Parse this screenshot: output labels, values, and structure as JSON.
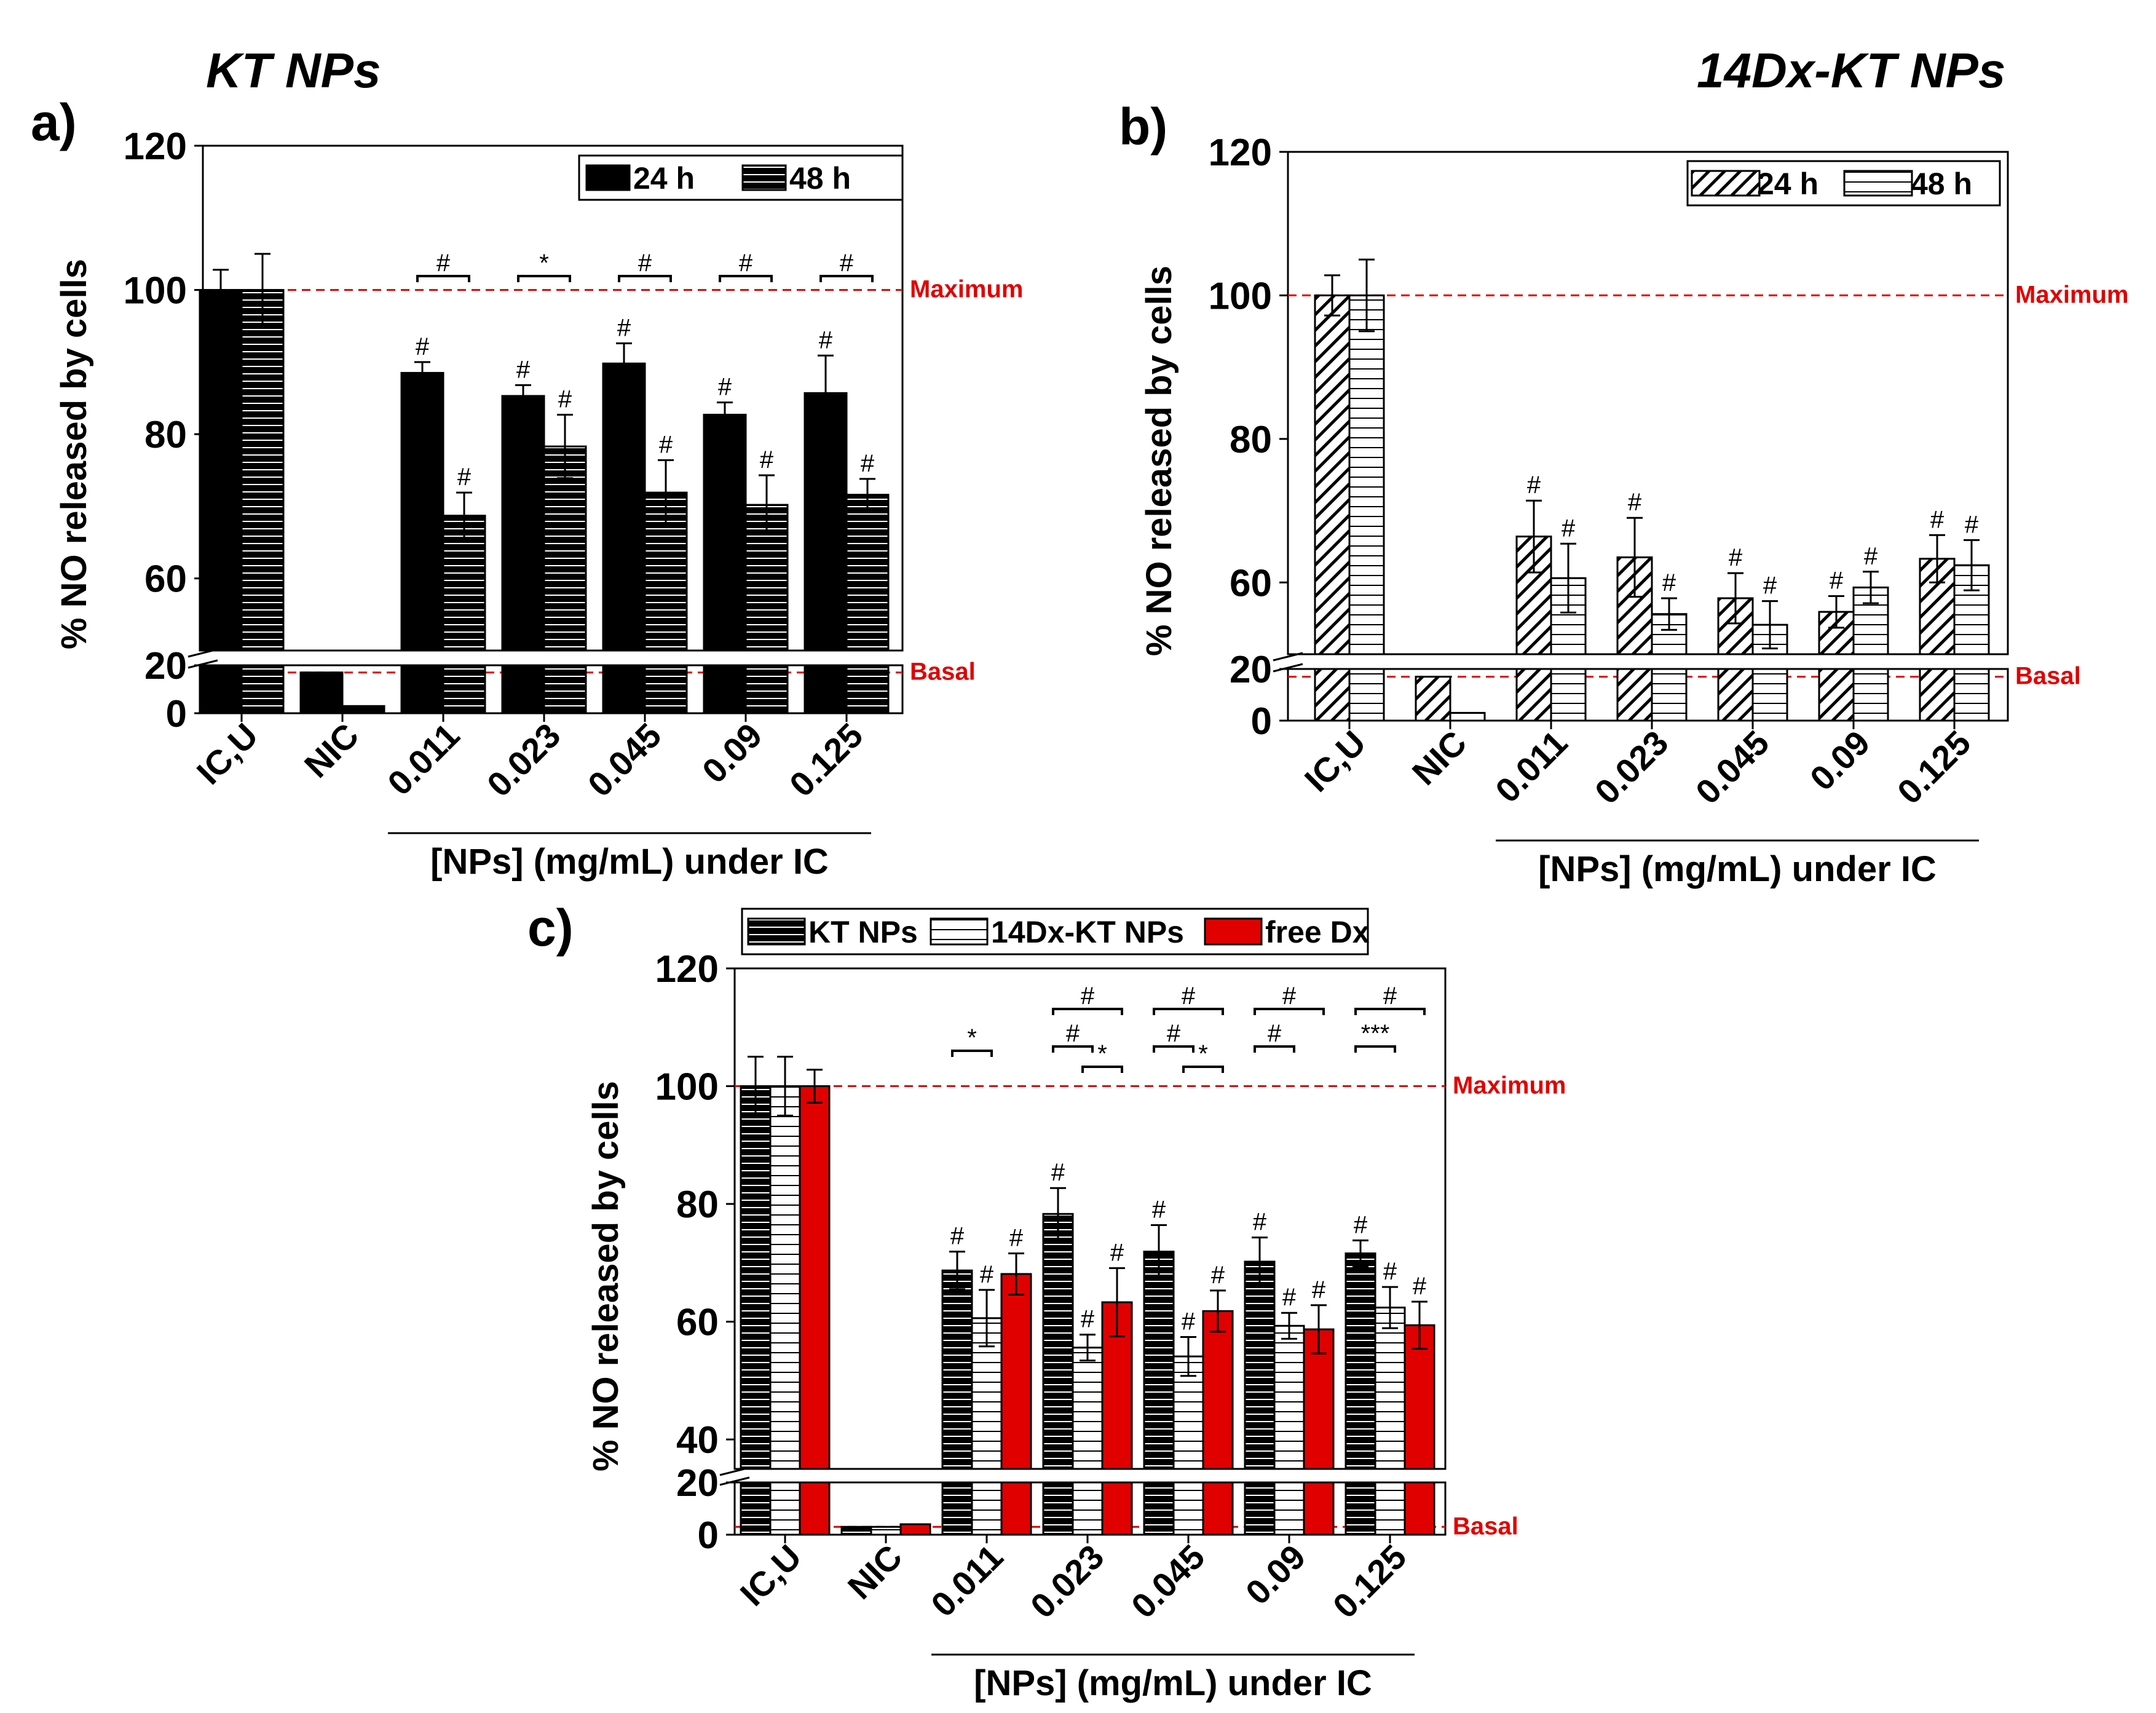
{
  "chart_data": [
    {
      "type": "bar",
      "panel": "a)",
      "title": "KT NPs",
      "ylabel": "% NO released by cells",
      "xlabel": "[NPs] (mg/mL) under IC",
      "categories": [
        "IC,U",
        "NIC",
        "0.011",
        "0.023",
        "0.045",
        "0.09",
        "0.125"
      ],
      "series": [
        {
          "name": "24 h",
          "values": [
            100,
            17,
            88.5,
            85.3,
            89.8,
            82.7,
            85.7
          ],
          "errors": [
            2.8,
            0,
            1.5,
            1.5,
            2.8,
            1.7,
            5.2
          ]
        },
        {
          "name": "48 h",
          "values": [
            100,
            3,
            68.7,
            78.3,
            71.9,
            70.2,
            71.6
          ],
          "errors": [
            5,
            0,
            3.2,
            4.4,
            4.5,
            4.1,
            2.2
          ]
        }
      ],
      "yticks_upper": [
        "60",
        "80",
        "100",
        "120"
      ],
      "yticks_lower": [
        "0",
        "20"
      ],
      "ylim_upper": [
        50,
        120
      ],
      "ylim_lower": [
        0,
        20
      ],
      "reference_lines": [
        {
          "label": "Maximum",
          "value": 100
        },
        {
          "label": "Basal",
          "value": 17
        }
      ],
      "point_marks": [
        {
          "category": "0.011",
          "series": "24 h",
          "mark": "#"
        },
        {
          "category": "0.011",
          "series": "48 h",
          "mark": "#"
        },
        {
          "category": "0.023",
          "series": "24 h",
          "mark": "#"
        },
        {
          "category": "0.023",
          "series": "48 h",
          "mark": "#"
        },
        {
          "category": "0.045",
          "series": "24 h",
          "mark": "#"
        },
        {
          "category": "0.045",
          "series": "48 h",
          "mark": "#"
        },
        {
          "category": "0.09",
          "series": "24 h",
          "mark": "#"
        },
        {
          "category": "0.09",
          "series": "48 h",
          "mark": "#"
        },
        {
          "category": "0.125",
          "series": "24 h",
          "mark": "#"
        },
        {
          "category": "0.125",
          "series": "48 h",
          "mark": "#"
        }
      ],
      "comparisons": [
        {
          "category": "0.011",
          "from": "24 h",
          "to": "48 h",
          "mark": "#"
        },
        {
          "category": "0.023",
          "from": "24 h",
          "to": "48 h",
          "mark": "*"
        },
        {
          "category": "0.045",
          "from": "24 h",
          "to": "48 h",
          "mark": "#"
        },
        {
          "category": "0.09",
          "from": "24 h",
          "to": "48 h",
          "mark": "#"
        },
        {
          "category": "0.125",
          "from": "24 h",
          "to": "48 h",
          "mark": "#"
        }
      ],
      "legend_position": "top-right"
    },
    {
      "type": "bar",
      "panel": "b)",
      "title": "14Dx-KT NPs",
      "ylabel": "% NO released by cells",
      "xlabel": "[NPs] (mg/mL) under IC",
      "categories": [
        "IC,U",
        "NIC",
        "0.011",
        "0.023",
        "0.045",
        "0.09",
        "0.125"
      ],
      "series": [
        {
          "name": "24 h",
          "values": [
            100,
            17,
            66.4,
            63.5,
            57.8,
            55.9,
            63.3
          ],
          "errors": [
            2.8,
            0,
            5,
            5.5,
            3.5,
            2.2,
            3.3
          ]
        },
        {
          "name": "48 h",
          "values": [
            100,
            3,
            60.6,
            55.6,
            54.1,
            59.3,
            62.4
          ],
          "errors": [
            5,
            0,
            4.8,
            2.2,
            3.3,
            2.2,
            3.5
          ]
        }
      ],
      "yticks_upper": [
        "60",
        "80",
        "100",
        "120"
      ],
      "yticks_lower": [
        "0",
        "20"
      ],
      "ylim_upper": [
        50,
        120
      ],
      "ylim_lower": [
        0,
        20
      ],
      "reference_lines": [
        {
          "label": "Maximum",
          "value": 100
        },
        {
          "label": "Basal",
          "value": 17
        }
      ],
      "point_marks": [
        {
          "category": "0.011",
          "series": "24 h",
          "mark": "#"
        },
        {
          "category": "0.011",
          "series": "48 h",
          "mark": "#"
        },
        {
          "category": "0.023",
          "series": "24 h",
          "mark": "#"
        },
        {
          "category": "0.023",
          "series": "48 h",
          "mark": "#"
        },
        {
          "category": "0.045",
          "series": "24 h",
          "mark": "#"
        },
        {
          "category": "0.045",
          "series": "48 h",
          "mark": "#"
        },
        {
          "category": "0.09",
          "series": "24 h",
          "mark": "#"
        },
        {
          "category": "0.09",
          "series": "48 h",
          "mark": "#"
        },
        {
          "category": "0.125",
          "series": "24 h",
          "mark": "#"
        },
        {
          "category": "0.125",
          "series": "48 h",
          "mark": "#"
        }
      ],
      "comparisons": [],
      "legend_position": "top-right"
    },
    {
      "type": "bar",
      "panel": "c)",
      "title": "",
      "ylabel": "% NO released by cells",
      "xlabel": "[NPs] (mg/mL) under IC",
      "categories": [
        "IC,U",
        "NIC",
        "0.011",
        "0.023",
        "0.045",
        "0.09",
        "0.125"
      ],
      "series": [
        {
          "name": "KT NPs",
          "values": [
            100,
            3,
            68.7,
            78.3,
            71.9,
            70.2,
            71.6
          ],
          "errors": [
            5,
            0,
            3.2,
            4.4,
            4.5,
            4.1,
            2.2
          ]
        },
        {
          "name": "14Dx-KT NPs",
          "values": [
            100,
            3,
            60.6,
            55.6,
            54.1,
            59.3,
            62.4
          ],
          "errors": [
            5,
            0,
            4.8,
            2.2,
            3.3,
            2.2,
            3.5
          ]
        },
        {
          "name": "free Dx",
          "values": [
            100,
            4,
            68.1,
            63.3,
            61.8,
            58.7,
            59.4
          ],
          "errors": [
            2.8,
            0,
            3.5,
            5.8,
            3.5,
            4.1,
            4
          ]
        }
      ],
      "yticks_upper": [
        "40",
        "60",
        "80",
        "100",
        "120"
      ],
      "yticks_lower": [
        "0",
        "20"
      ],
      "ylim_upper": [
        35,
        120
      ],
      "ylim_lower": [
        0,
        20
      ],
      "reference_lines": [
        {
          "label": "Maximum",
          "value": 100
        },
        {
          "label": "Basal",
          "value": 3
        }
      ],
      "point_marks": [
        {
          "category": "0.011",
          "series": "KT NPs",
          "mark": "#"
        },
        {
          "category": "0.011",
          "series": "14Dx-KT NPs",
          "mark": "#"
        },
        {
          "category": "0.011",
          "series": "free Dx",
          "mark": "#"
        },
        {
          "category": "0.023",
          "series": "KT NPs",
          "mark": "#"
        },
        {
          "category": "0.023",
          "series": "14Dx-KT NPs",
          "mark": "#"
        },
        {
          "category": "0.023",
          "series": "free Dx",
          "mark": "#"
        },
        {
          "category": "0.045",
          "series": "KT NPs",
          "mark": "#"
        },
        {
          "category": "0.045",
          "series": "14Dx-KT NPs",
          "mark": "#"
        },
        {
          "category": "0.045",
          "series": "free Dx",
          "mark": "#"
        },
        {
          "category": "0.09",
          "series": "KT NPs",
          "mark": "#"
        },
        {
          "category": "0.09",
          "series": "14Dx-KT NPs",
          "mark": "#"
        },
        {
          "category": "0.09",
          "series": "free Dx",
          "mark": "#"
        },
        {
          "category": "0.125",
          "series": "KT NPs",
          "mark": "#"
        },
        {
          "category": "0.125",
          "series": "14Dx-KT NPs",
          "mark": "#"
        },
        {
          "category": "0.125",
          "series": "free Dx",
          "mark": "#"
        }
      ],
      "comparisons": [
        {
          "category": "0.011",
          "from": "KT NPs",
          "to": "14Dx-KT NPs",
          "mark": "*"
        },
        {
          "category": "0.023",
          "from": "KT NPs",
          "to": "free Dx",
          "mark": "#"
        },
        {
          "category": "0.023",
          "from": "KT NPs",
          "to": "14Dx-KT NPs",
          "mark": "#"
        },
        {
          "category": "0.023",
          "from": "14Dx-KT NPs",
          "to": "free Dx",
          "mark": "*"
        },
        {
          "category": "0.045",
          "from": "KT NPs",
          "to": "free Dx",
          "mark": "#"
        },
        {
          "category": "0.045",
          "from": "KT NPs",
          "to": "14Dx-KT NPs",
          "mark": "#"
        },
        {
          "category": "0.045",
          "from": "14Dx-KT NPs",
          "to": "free Dx",
          "mark": "*"
        },
        {
          "category": "0.09",
          "from": "KT NPs",
          "to": "free Dx",
          "mark": "#"
        },
        {
          "category": "0.09",
          "from": "KT NPs",
          "to": "14Dx-KT NPs",
          "mark": "#"
        },
        {
          "category": "0.125",
          "from": "KT NPs",
          "to": "free Dx",
          "mark": "#"
        },
        {
          "category": "0.125",
          "from": "KT NPs",
          "to": "14Dx-KT NPs",
          "mark": "***"
        }
      ],
      "legend_position": "top-left"
    }
  ],
  "colors": {
    "bar_black": "#000000",
    "bar_white": "#ffffff",
    "bar_red": "#e00000",
    "reference_line": "#e00000"
  }
}
